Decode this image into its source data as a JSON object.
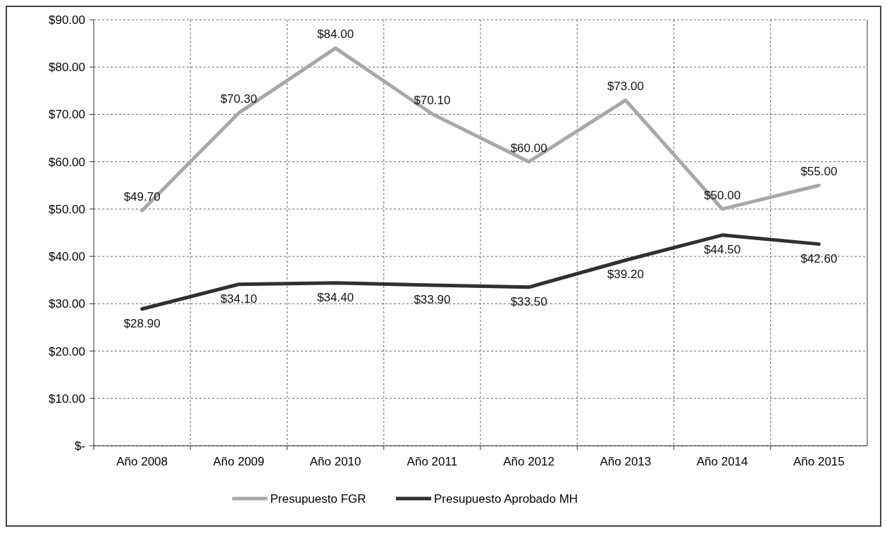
{
  "chart_data": {
    "type": "line",
    "categories": [
      "Año 2008",
      "Año 2009",
      "Año 2010",
      "Año 2011",
      "Año 2012",
      "Año 2013",
      "Año 2014",
      "Año 2015"
    ],
    "series": [
      {
        "name": "Presupuesto FGR",
        "color": "#a8a8a8",
        "values": [
          49.7,
          70.3,
          84,
          70.1,
          60,
          73,
          50,
          55
        ],
        "value_labels": [
          "$49.70",
          "$70.30",
          "$84.00",
          "$70.10",
          "$60.00",
          "$73.00",
          "$50.00",
          "$55.00"
        ]
      },
      {
        "name": "Presupuesto Aprobado MH",
        "color": "#303030",
        "values": [
          28.9,
          34.1,
          34.4,
          33.9,
          33.5,
          39.2,
          44.5,
          42.6
        ],
        "value_labels": [
          "$28.90",
          "$34.10",
          "$34.40",
          "$33.90",
          "$33.50",
          "$39.20",
          "$44.50",
          "$42.60"
        ]
      }
    ],
    "ylim": [
      0,
      90
    ],
    "yticks": [
      {
        "value": 0,
        "label": "$-"
      },
      {
        "value": 10,
        "label": "$10.00"
      },
      {
        "value": 20,
        "label": "$20.00"
      },
      {
        "value": 30,
        "label": "$30.00"
      },
      {
        "value": 40,
        "label": "$40.00"
      },
      {
        "value": 50,
        "label": "$50.00"
      },
      {
        "value": 60,
        "label": "$60.00"
      },
      {
        "value": 70,
        "label": "$70.00"
      },
      {
        "value": 80,
        "label": "$80.00"
      },
      {
        "value": 90,
        "label": "$90.00"
      }
    ],
    "grid": true,
    "legend": "bottom",
    "marker": "none",
    "line_style": "solid"
  }
}
